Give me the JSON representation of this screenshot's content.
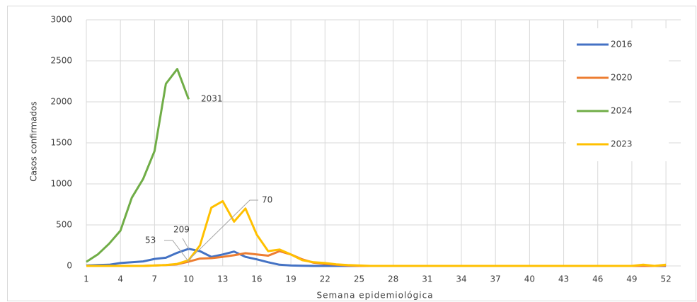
{
  "chart_data": {
    "type": "line",
    "y_label": "Casos confirmados",
    "x_label": "Semana epidemiológica",
    "x": [
      1,
      2,
      3,
      4,
      5,
      6,
      7,
      8,
      9,
      10,
      11,
      12,
      13,
      14,
      15,
      16,
      17,
      18,
      19,
      20,
      21,
      22,
      23,
      24,
      25,
      26,
      27,
      28,
      29,
      30,
      31,
      32,
      33,
      34,
      35,
      36,
      37,
      38,
      39,
      40,
      41,
      42,
      43,
      44,
      45,
      46,
      47,
      48,
      49,
      50,
      51,
      52
    ],
    "xlim": [
      1,
      53.3
    ],
    "xticks": [
      1,
      4,
      7,
      10,
      13,
      16,
      19,
      22,
      25,
      28,
      31,
      34,
      37,
      40,
      43,
      46,
      49,
      52
    ],
    "ylim": [
      0,
      3000
    ],
    "yticks": [
      0,
      500,
      1000,
      1500,
      2000,
      2500,
      3000
    ],
    "grid": true,
    "legend": "right",
    "series": [
      {
        "name": "2016",
        "color": "#4472c4",
        "values": [
          5,
          10,
          15,
          35,
          45,
          55,
          85,
          100,
          160,
          209,
          180,
          110,
          140,
          175,
          110,
          80,
          45,
          15,
          5,
          2,
          0,
          0,
          0,
          0,
          0,
          0,
          0,
          0,
          0,
          0,
          0,
          0,
          0,
          0,
          0,
          0,
          0,
          0,
          0,
          0,
          0,
          0,
          0,
          0,
          0,
          0,
          0,
          0,
          0,
          0,
          0,
          0
        ]
      },
      {
        "name": "2020",
        "color": "#ed7d31",
        "values": [
          0,
          0,
          0,
          0,
          0,
          0,
          5,
          10,
          20,
          53,
          90,
          95,
          110,
          130,
          155,
          140,
          125,
          180,
          140,
          80,
          40,
          25,
          15,
          5,
          0,
          0,
          0,
          0,
          0,
          0,
          0,
          0,
          0,
          0,
          0,
          0,
          0,
          0,
          0,
          0,
          0,
          0,
          0,
          0,
          0,
          0,
          0,
          0,
          0,
          0,
          0,
          5
        ]
      },
      {
        "name": "2024",
        "color": "#70ad47",
        "values": [
          50,
          140,
          270,
          430,
          830,
          1060,
          1400,
          2220,
          2400,
          2031,
          null,
          null,
          null,
          null,
          null,
          null,
          null,
          null,
          null,
          null,
          null,
          null,
          null,
          null,
          null,
          null,
          null,
          null,
          null,
          null,
          null,
          null,
          null,
          null,
          null,
          null,
          null,
          null,
          null,
          null,
          null,
          null,
          null,
          null,
          null,
          null,
          null,
          null,
          null,
          null,
          null,
          null
        ]
      },
      {
        "name": "2023",
        "color": "#ffc000",
        "values": [
          0,
          0,
          0,
          0,
          0,
          0,
          5,
          10,
          25,
          70,
          250,
          710,
          790,
          540,
          700,
          380,
          180,
          200,
          140,
          70,
          45,
          35,
          20,
          10,
          5,
          0,
          0,
          0,
          0,
          0,
          0,
          0,
          0,
          0,
          0,
          0,
          0,
          0,
          0,
          0,
          0,
          0,
          0,
          0,
          0,
          0,
          0,
          0,
          0,
          15,
          0,
          15
        ]
      }
    ]
  }
}
